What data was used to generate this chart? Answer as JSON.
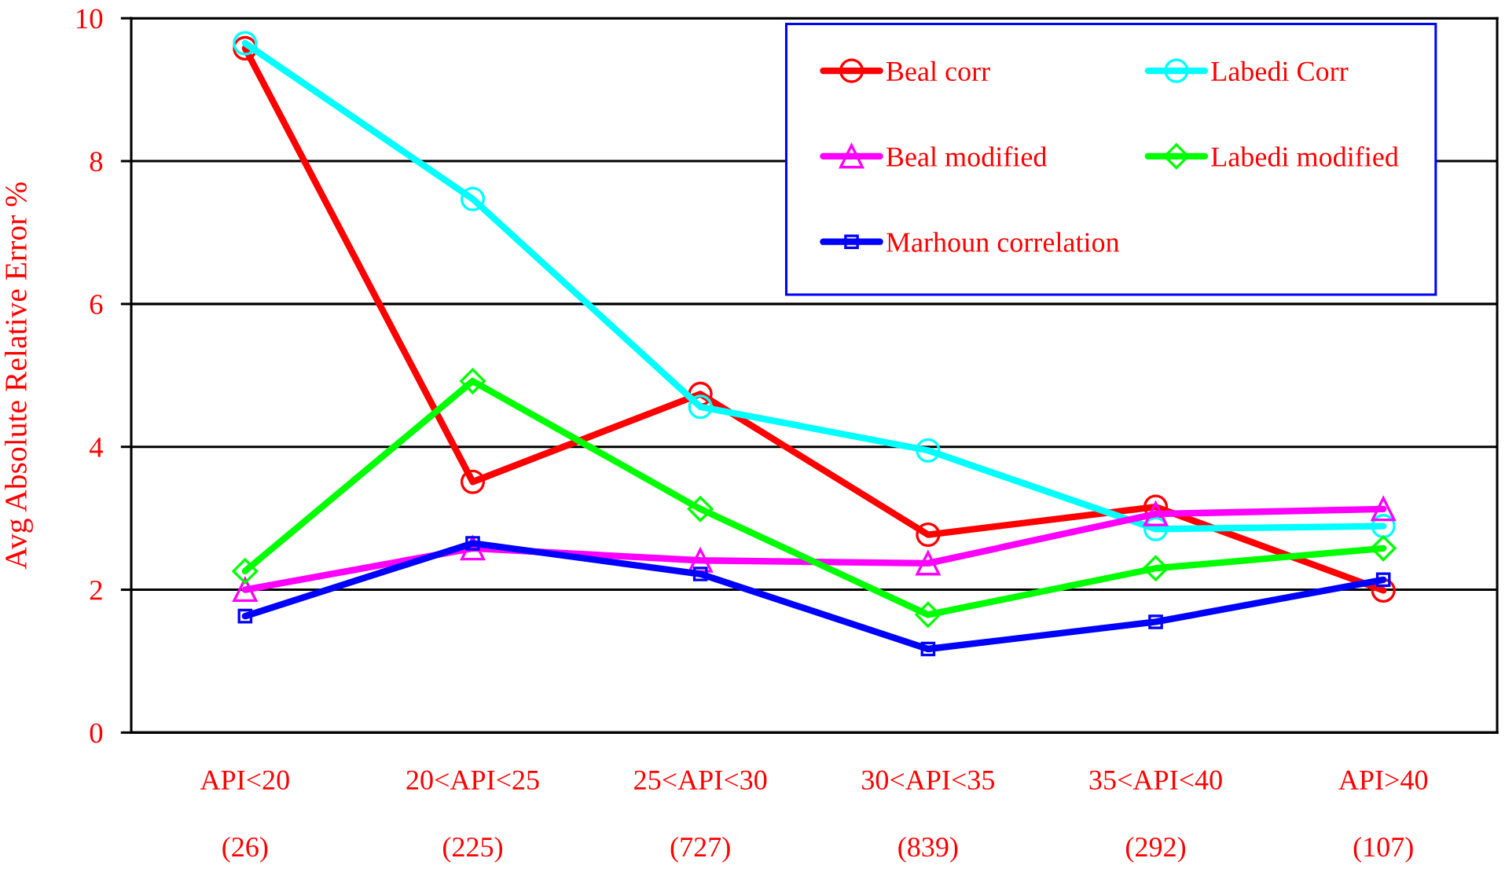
{
  "chart_data": {
    "type": "line",
    "ylabel": "Avg Absolute Relative Error %",
    "categories": [
      "API<20\n(26)",
      "20<API<25\n(225)",
      "25<API<30\n(727)",
      "30<API<35\n(839)",
      "35<API<40\n(292)",
      "API>40\n(107)"
    ],
    "series": [
      {
        "name": "Beal corr",
        "color": "#ff0000",
        "marker": "circle",
        "values": [
          9.58,
          3.51,
          4.74,
          2.77,
          3.16,
          1.99
        ]
      },
      {
        "name": "Labedi Corr",
        "color": "#00ffff",
        "marker": "circle",
        "values": [
          9.65,
          7.47,
          4.56,
          3.95,
          2.85,
          2.89
        ]
      },
      {
        "name": "Beal modified",
        "color": "#ff00ff",
        "marker": "triangle",
        "values": [
          2.0,
          2.58,
          2.41,
          2.37,
          3.06,
          3.13
        ]
      },
      {
        "name": "Labedi modified",
        "color": "#00ff00",
        "marker": "diamond",
        "values": [
          2.26,
          4.92,
          3.13,
          1.65,
          2.3,
          2.58
        ]
      },
      {
        "name": "Marhoun correlation",
        "color": "#0000ff",
        "marker": "square",
        "values": [
          1.63,
          2.65,
          2.22,
          1.17,
          1.55,
          2.14
        ]
      }
    ],
    "ylim": [
      0,
      10
    ],
    "yticks": [
      0,
      2,
      4,
      6,
      8,
      10
    ],
    "grid": "y",
    "legend": "top right",
    "line_style": "solid"
  }
}
